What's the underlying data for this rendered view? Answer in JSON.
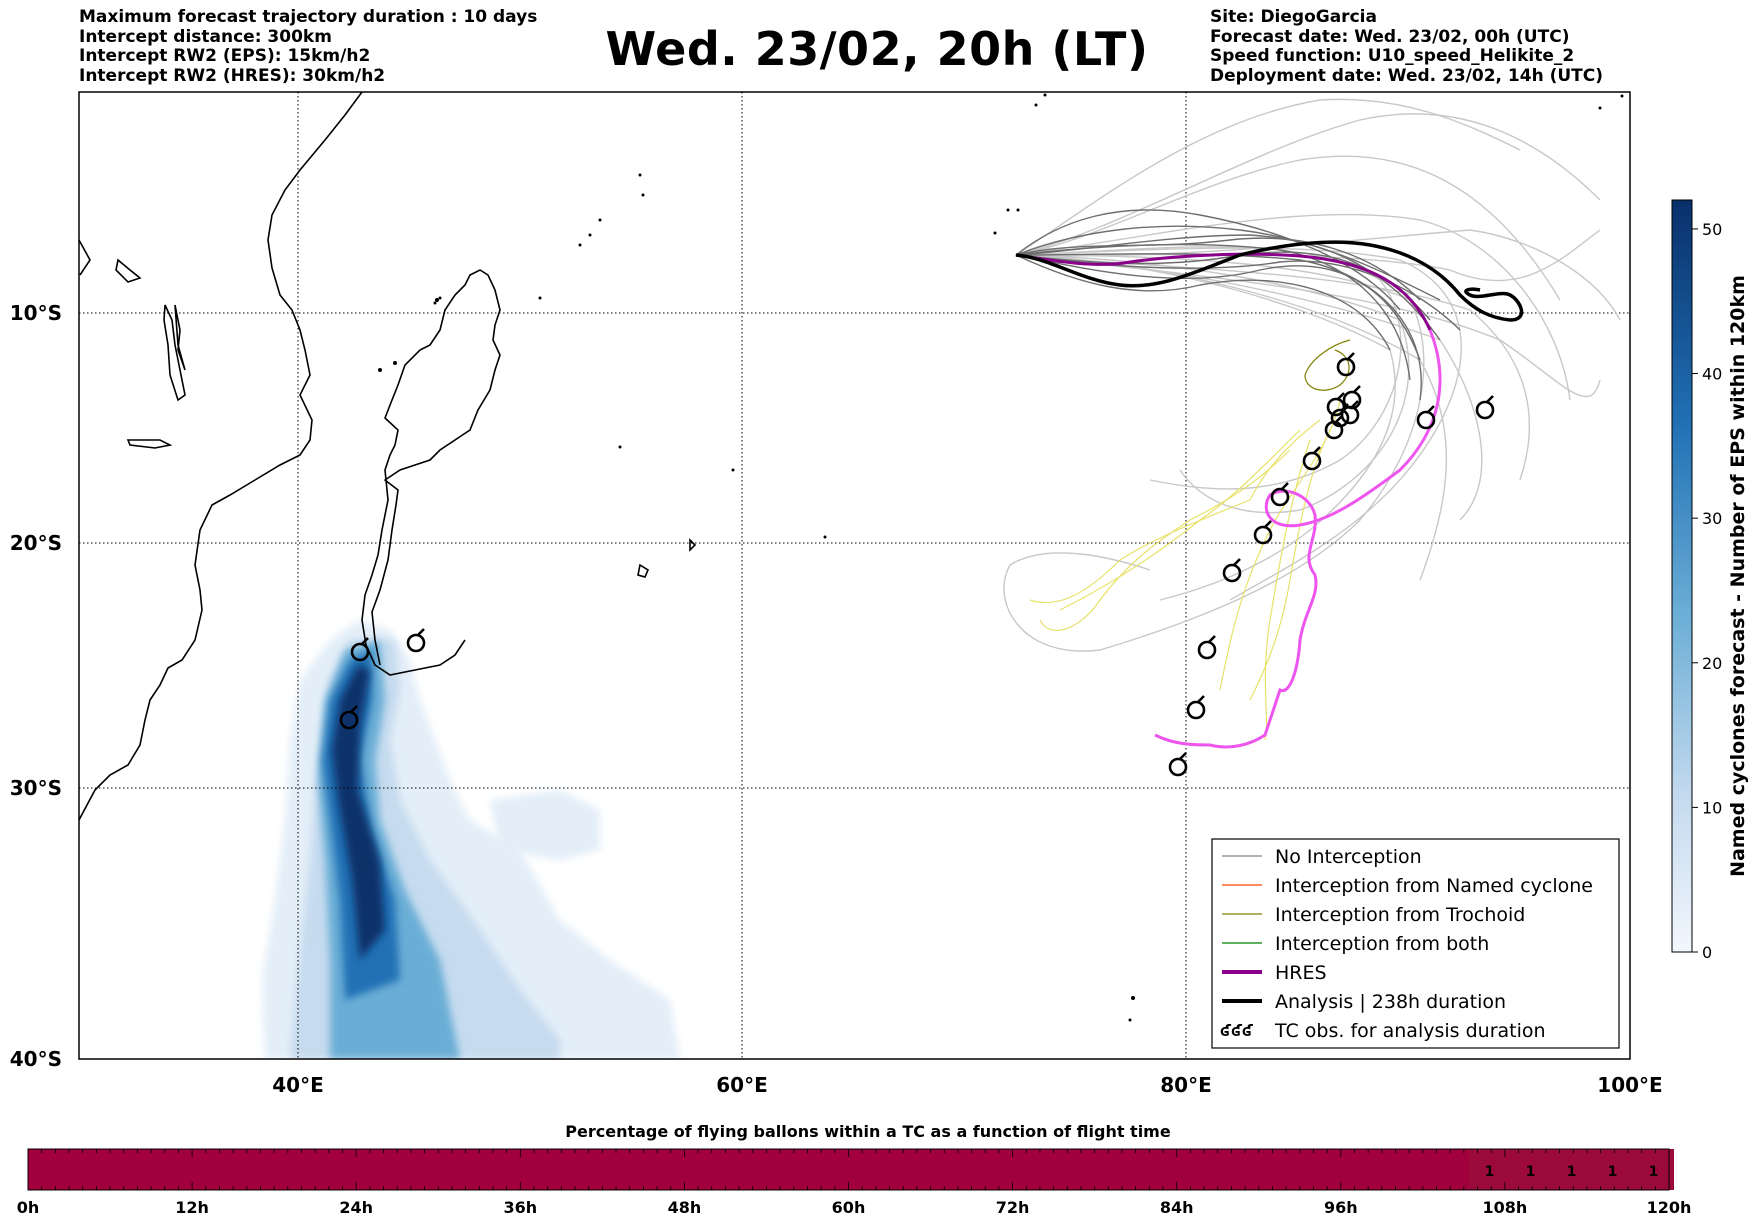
{
  "header": {
    "left_lines": [
      "Maximum forecast trajectory duration : 10 days",
      "Intercept distance: 300km",
      "Intercept RW2 (EPS):  15km/h2",
      "Intercept RW2 (HRES): 30km/h2"
    ],
    "title": "Wed. 23/02, 20h (LT)",
    "right_lines": [
      "Site: DiegoGarcia",
      "Forecast date: Wed. 23/02, 00h (UTC)",
      "Speed function: U10_speed_Helikite_2",
      "Deployment date: Wed. 23/02, 14h (UTC)"
    ]
  },
  "map": {
    "lon_labels": [
      "40°E",
      "60°E",
      "80°E",
      "100°E"
    ],
    "lat_labels": [
      "10°S",
      "20°S",
      "30°S",
      "40°S"
    ]
  },
  "legend": {
    "items": [
      {
        "label": "No Interception",
        "color": "#808080",
        "style": "line"
      },
      {
        "label": "Interception from Named cyclone",
        "color": "#ff4500",
        "style": "line"
      },
      {
        "label": "Interception from Trochoid",
        "color": "#808000",
        "style": "line"
      },
      {
        "label": "Interception from both",
        "color": "#008000",
        "style": "line"
      },
      {
        "label": "HRES",
        "color": "#8b008b",
        "style": "thick"
      },
      {
        "label": "Analysis | 238h duration",
        "color": "#000000",
        "style": "thick"
      },
      {
        "label": "TC obs. for analysis duration",
        "color": "#000000",
        "style": "symbol",
        "symbol": "ʛʛʛ"
      }
    ]
  },
  "colorbar": {
    "label": "Named cyclones forecast - Number of EPS within 120km",
    "ticks": [
      "0",
      "10",
      "20",
      "30",
      "40",
      "50"
    ],
    "min": 0,
    "max": 52,
    "colors": [
      "#deebf7",
      "#08306b"
    ]
  },
  "bottom_bar": {
    "title": "Percentage of flying ballons within a TC as a function of flight time",
    "time_labels": [
      "0h",
      "12h",
      "24h",
      "36h",
      "48h",
      "60h",
      "72h",
      "84h",
      "96h",
      "108h",
      "120h"
    ],
    "cell_values": [
      "1",
      "1",
      "1",
      "1",
      "1"
    ],
    "main_color": "#a1003c",
    "tail_color": "#9c0a3c"
  }
}
